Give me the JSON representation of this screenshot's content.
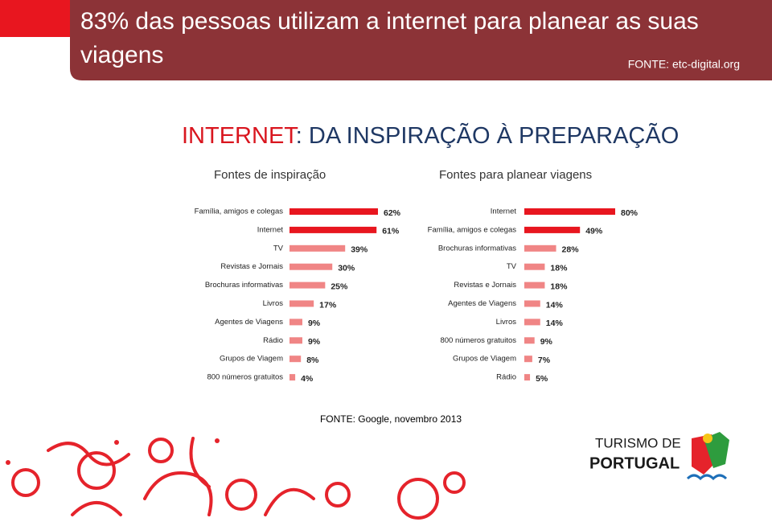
{
  "header": {
    "title": "83% das pessoas utilizam a internet para planear as suas viagens",
    "source": "FONTE: etc-digital.org"
  },
  "subtitle_highlight": "INTERNET",
  "subtitle_rest": ": DA INSPIRAÇÃO À PREPARAÇÃO",
  "chart_data": [
    {
      "type": "bar",
      "orientation": "horizontal",
      "title": "Fontes de inspiração",
      "categories": [
        "Família, amigos e colegas",
        "Internet",
        "TV",
        "Revistas e Jornais",
        "Brochuras informativas",
        "Livros",
        "Agentes de Viagens",
        "Rádio",
        "Grupos de Viagem",
        "800 números gratuitos"
      ],
      "values": [
        62,
        61,
        39,
        30,
        25,
        17,
        9,
        9,
        8,
        4
      ],
      "value_labels": [
        "62%",
        "61%",
        "39%",
        "30%",
        "25%",
        "17%",
        "9%",
        "9%",
        "8%",
        "4%"
      ],
      "colors": [
        "#e8161f",
        "#e8161f",
        "#f08585",
        "#f08585",
        "#f08585",
        "#f08585",
        "#f08585",
        "#f08585",
        "#f08585",
        "#f08585"
      ]
    },
    {
      "type": "bar",
      "orientation": "horizontal",
      "title": "Fontes para planear viagens",
      "categories": [
        "Internet",
        "Família, amigos e colegas",
        "Brochuras informativas",
        "TV",
        "Revistas e Jornais",
        "Agentes de Viagens",
        "Livros",
        "800 números gratuitos",
        "Grupos de Viagem",
        "Rádio"
      ],
      "values": [
        80,
        49,
        28,
        18,
        18,
        14,
        14,
        9,
        7,
        5
      ],
      "value_labels": [
        "80%",
        "49%",
        "28%",
        "18%",
        "18%",
        "14%",
        "14%",
        "9%",
        "7%",
        "5%"
      ],
      "colors": [
        "#e8161f",
        "#e8161f",
        "#f08585",
        "#f08585",
        "#f08585",
        "#f08585",
        "#f08585",
        "#f08585",
        "#f08585",
        "#f08585"
      ]
    }
  ],
  "footer_source": "FONTE: Google, novembro 2013",
  "logo": {
    "line1": "TURISMO DE",
    "line2": "PORTUGAL"
  }
}
